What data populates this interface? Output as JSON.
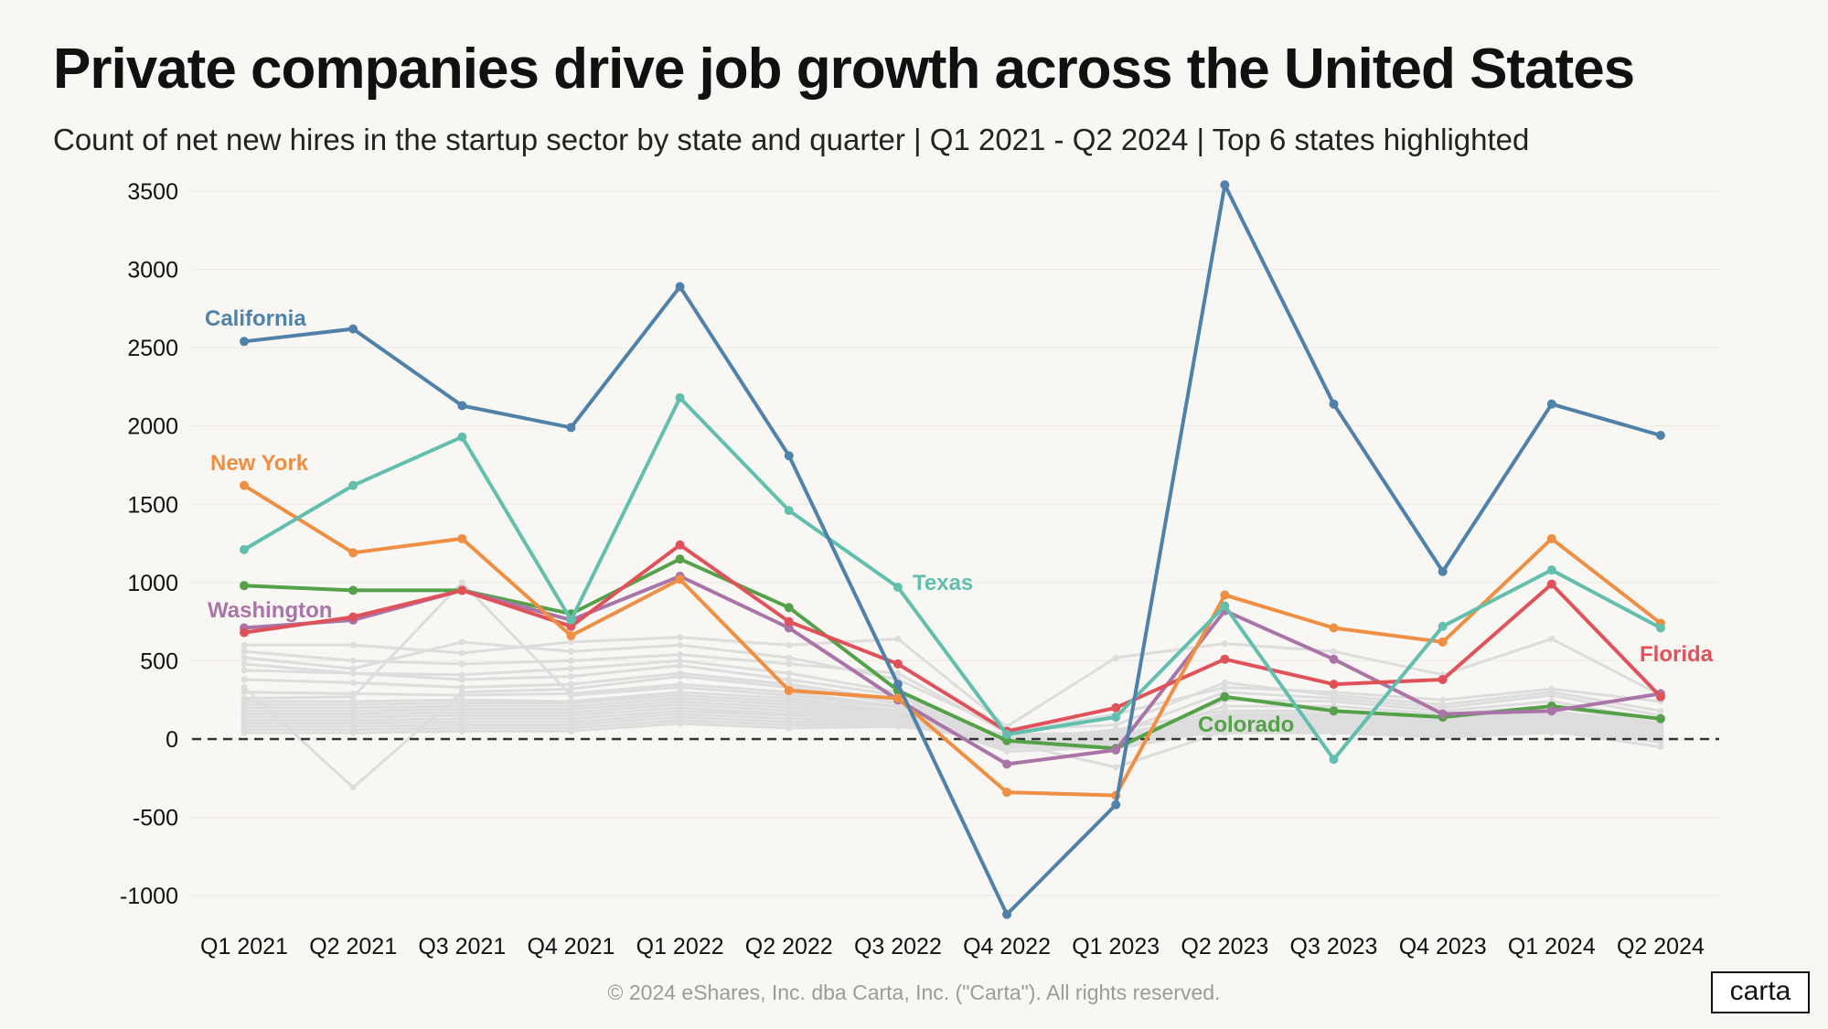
{
  "title": "Private companies drive job growth across the United States",
  "subtitle": "Count of net new hires in the startup sector by state and quarter | Q1 2021 - Q2 2024 | Top 6 states highlighted",
  "footer": "© 2024 eShares, Inc. dba Carta, Inc. (\"Carta\"). All rights reserved.",
  "logo": "carta",
  "chart_data": {
    "type": "line",
    "title": "Private companies drive job growth across the United States",
    "xlabel": "",
    "ylabel": "",
    "ylim": [
      -1100,
      3550
    ],
    "yticks": [
      3500,
      3000,
      2500,
      2000,
      1500,
      1000,
      500,
      0,
      -500,
      -1000
    ],
    "categories": [
      "Q1 2021",
      "Q2 2021",
      "Q3 2021",
      "Q4 2021",
      "Q1 2022",
      "Q2 2022",
      "Q3 2022",
      "Q4 2022",
      "Q1 2023",
      "Q2 2023",
      "Q3 2023",
      "Q4 2023",
      "Q1 2024",
      "Q2 2024"
    ],
    "reference_line": 0,
    "series": [
      {
        "name": "California",
        "color": "#4f81a9",
        "values": [
          2540,
          2620,
          2130,
          1990,
          2890,
          1810,
          350,
          -1120,
          -420,
          3540,
          2140,
          1070,
          2140,
          1940
        ]
      },
      {
        "name": "Texas",
        "color": "#62bfae",
        "values": [
          1210,
          1620,
          1930,
          760,
          2180,
          1460,
          970,
          30,
          140,
          850,
          -130,
          720,
          1080,
          710
        ]
      },
      {
        "name": "New York",
        "color": "#ee8f44",
        "values": [
          1620,
          1190,
          1280,
          660,
          1020,
          310,
          260,
          -340,
          -360,
          920,
          710,
          620,
          1280,
          740
        ]
      },
      {
        "name": "Florida",
        "color": "#e05159",
        "values": [
          680,
          780,
          950,
          720,
          1240,
          750,
          480,
          50,
          200,
          510,
          350,
          380,
          990,
          270
        ]
      },
      {
        "name": "Washington",
        "color": "#a975a8",
        "values": [
          710,
          760,
          950,
          760,
          1040,
          710,
          250,
          -160,
          -70,
          820,
          510,
          160,
          180,
          290
        ]
      },
      {
        "name": "Colorado",
        "color": "#55a14a",
        "values": [
          980,
          950,
          950,
          800,
          1150,
          840,
          310,
          -10,
          -60,
          270,
          180,
          140,
          210,
          130
        ]
      }
    ],
    "background_series": [
      [
        600,
        600,
        550,
        620,
        650,
        600,
        640,
        80,
        520,
        610,
        560,
        410,
        640,
        280
      ],
      [
        560,
        500,
        480,
        500,
        540,
        480,
        420,
        40,
        160,
        330,
        300,
        250,
        320,
        240
      ],
      [
        520,
        450,
        620,
        560,
        600,
        520,
        380,
        60,
        90,
        360,
        280,
        220,
        300,
        180
      ],
      [
        480,
        420,
        410,
        450,
        500,
        420,
        300,
        -30,
        40,
        300,
        260,
        200,
        280,
        150
      ],
      [
        440,
        420,
        380,
        400,
        470,
        380,
        280,
        -50,
        -50,
        250,
        240,
        180,
        240,
        120
      ],
      [
        380,
        360,
        330,
        350,
        420,
        350,
        250,
        -20,
        -20,
        210,
        210,
        160,
        210,
        100
      ],
      [
        330,
        -310,
        300,
        320,
        400,
        330,
        230,
        -10,
        60,
        180,
        180,
        140,
        180,
        90
      ],
      [
        300,
        290,
        280,
        290,
        350,
        300,
        210,
        20,
        30,
        160,
        160,
        130,
        170,
        80
      ],
      [
        260,
        270,
        1000,
        280,
        330,
        280,
        200,
        0,
        10,
        150,
        150,
        120,
        160,
        70
      ],
      [
        240,
        240,
        250,
        240,
        300,
        260,
        180,
        -40,
        -10,
        140,
        140,
        110,
        140,
        60
      ],
      [
        220,
        220,
        230,
        230,
        280,
        240,
        170,
        -60,
        -30,
        130,
        130,
        100,
        130,
        50
      ],
      [
        200,
        200,
        210,
        210,
        260,
        220,
        160,
        -80,
        -50,
        120,
        120,
        90,
        120,
        40
      ],
      [
        180,
        180,
        190,
        190,
        240,
        200,
        150,
        10,
        20,
        110,
        110,
        80,
        110,
        30
      ],
      [
        160,
        160,
        170,
        170,
        220,
        180,
        140,
        30,
        40,
        100,
        100,
        70,
        100,
        20
      ],
      [
        140,
        140,
        150,
        150,
        200,
        160,
        130,
        20,
        10,
        90,
        90,
        60,
        90,
        10
      ],
      [
        120,
        120,
        130,
        130,
        180,
        150,
        120,
        0,
        -20,
        80,
        80,
        50,
        80,
        0
      ],
      [
        100,
        100,
        110,
        110,
        160,
        130,
        110,
        -10,
        -40,
        70,
        70,
        40,
        70,
        -10
      ],
      [
        80,
        80,
        90,
        90,
        140,
        110,
        100,
        -30,
        -60,
        60,
        60,
        30,
        60,
        -20
      ],
      [
        60,
        60,
        70,
        70,
        120,
        90,
        90,
        -20,
        -180,
        50,
        50,
        20,
        50,
        -50
      ],
      [
        40,
        40,
        50,
        50,
        100,
        70,
        80,
        10,
        0,
        40,
        40,
        10,
        40,
        0
      ]
    ],
    "labels": [
      {
        "text": "California",
        "series": "California"
      },
      {
        "text": "New York",
        "series": "New York"
      },
      {
        "text": "Washington",
        "series": "Washington"
      },
      {
        "text": "Texas",
        "series": "Texas"
      },
      {
        "text": "Colorado",
        "series": "Colorado"
      },
      {
        "text": "Florida",
        "series": "Florida"
      }
    ]
  }
}
